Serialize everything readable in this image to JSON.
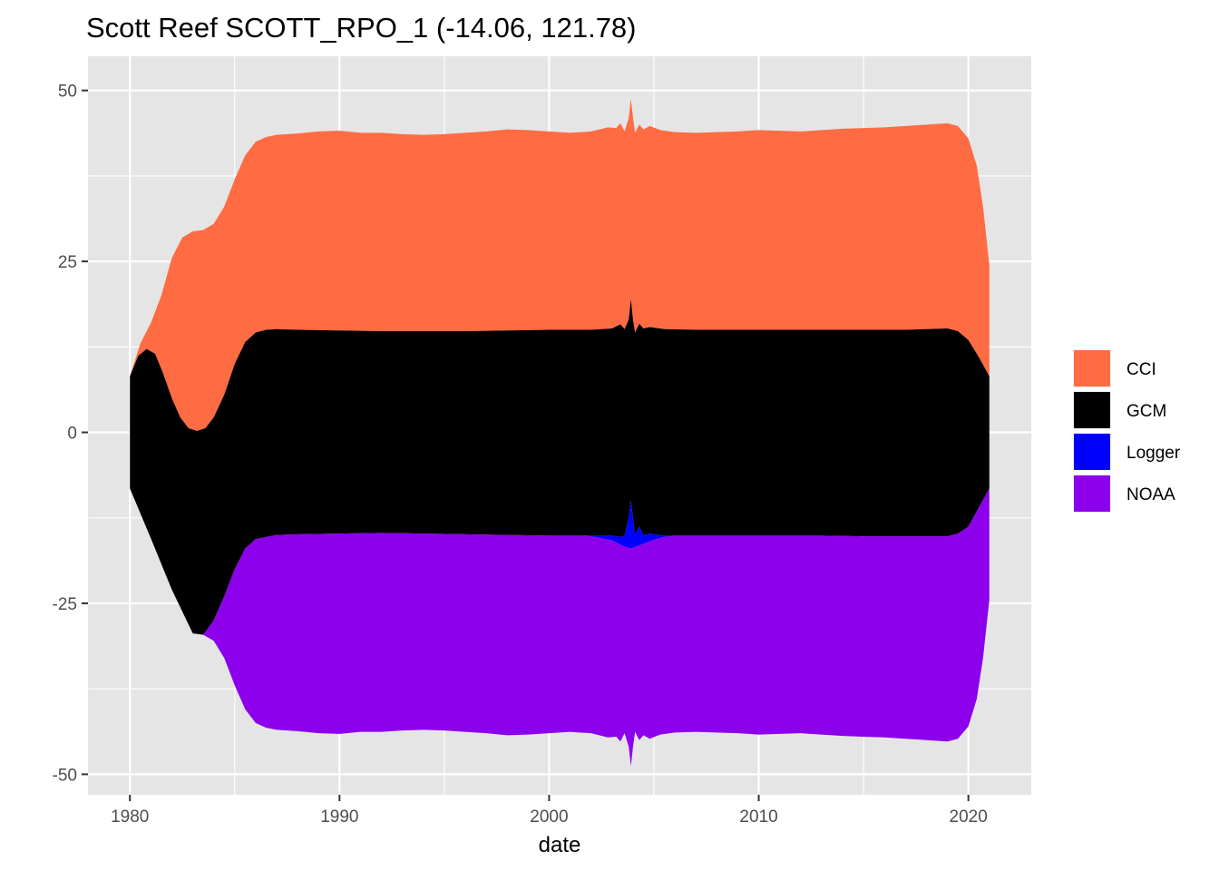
{
  "chart_data": {
    "type": "area",
    "subtype": "streamgraph (stacked, centered)",
    "title": "Scott Reef SCOTT_RPO_1 (-14.06, 121.78)",
    "xlabel": "date",
    "ylabel": "",
    "xlim": [
      1978,
      2023
    ],
    "ylim": [
      -53,
      55
    ],
    "x_ticks": [
      1980,
      1990,
      2000,
      2010,
      2020
    ],
    "x_tick_labels": [
      "1980",
      "1990",
      "2000",
      "2010",
      "2020"
    ],
    "y_ticks": [
      -50,
      -25,
      0,
      25,
      50
    ],
    "y_tick_labels": [
      "-50",
      "-25",
      "0",
      "25",
      "50"
    ],
    "grid": true,
    "legend_position": "right",
    "legend": [
      {
        "key": "CCI",
        "label": "CCI",
        "color": "#ff6b43"
      },
      {
        "key": "GCM",
        "label": "GCM",
        "color": "#000000"
      },
      {
        "key": "Logger",
        "label": "Logger",
        "color": "#0000ff"
      },
      {
        "key": "NOAA",
        "label": "NOAA",
        "color": "#8c00ec"
      }
    ],
    "boundaries": {
      "cci_top": [
        [
          1980.0,
          8.2
        ],
        [
          1980.5,
          13
        ],
        [
          1981.0,
          16
        ],
        [
          1981.5,
          20
        ],
        [
          1982.0,
          25.5
        ],
        [
          1982.5,
          28.5
        ],
        [
          1983.0,
          29.4
        ],
        [
          1983.5,
          29.6
        ],
        [
          1984.0,
          30.5
        ],
        [
          1984.5,
          33
        ],
        [
          1985.0,
          37
        ],
        [
          1985.5,
          40.5
        ],
        [
          1986.0,
          42.5
        ],
        [
          1986.5,
          43.2
        ],
        [
          1987.0,
          43.5
        ],
        [
          1988.0,
          43.7
        ],
        [
          1989.0,
          44
        ],
        [
          1990.0,
          44.1
        ],
        [
          1991.0,
          43.8
        ],
        [
          1992.0,
          43.8
        ],
        [
          1993.0,
          43.6
        ],
        [
          1994.0,
          43.5
        ],
        [
          1995.0,
          43.6
        ],
        [
          1996.0,
          43.8
        ],
        [
          1997.0,
          44
        ],
        [
          1998.0,
          44.3
        ],
        [
          1999.0,
          44.2
        ],
        [
          2000.0,
          44
        ],
        [
          2001.0,
          43.8
        ],
        [
          2002.0,
          44
        ],
        [
          2002.8,
          44.6
        ],
        [
          2003.2,
          44.5
        ],
        [
          2003.4,
          45.2
        ],
        [
          2003.6,
          44
        ],
        [
          2003.8,
          46
        ],
        [
          2003.9,
          48.8
        ],
        [
          2004.0,
          46
        ],
        [
          2004.1,
          43.8
        ],
        [
          2004.3,
          45
        ],
        [
          2004.5,
          44.3
        ],
        [
          2004.8,
          44.8
        ],
        [
          2005.3,
          44.2
        ],
        [
          2006.0,
          43.9
        ],
        [
          2007.0,
          43.8
        ],
        [
          2008.0,
          43.9
        ],
        [
          2009.0,
          44
        ],
        [
          2010.0,
          44.2
        ],
        [
          2011.0,
          44.1
        ],
        [
          2012.0,
          44
        ],
        [
          2013.0,
          44.2
        ],
        [
          2014.0,
          44.4
        ],
        [
          2015.0,
          44.5
        ],
        [
          2016.0,
          44.6
        ],
        [
          2017.0,
          44.8
        ],
        [
          2018.0,
          45
        ],
        [
          2019.0,
          45.2
        ],
        [
          2019.5,
          44.8
        ],
        [
          2020.0,
          43
        ],
        [
          2020.4,
          39
        ],
        [
          2020.7,
          33
        ],
        [
          2021.0,
          24.5
        ]
      ],
      "gcm_top": [
        [
          1980.0,
          8.2
        ],
        [
          1980.4,
          11.2
        ],
        [
          1980.8,
          12.2
        ],
        [
          1981.2,
          11.5
        ],
        [
          1981.6,
          8.5
        ],
        [
          1982.0,
          5
        ],
        [
          1982.4,
          2.2
        ],
        [
          1982.8,
          0.6
        ],
        [
          1983.2,
          0.2
        ],
        [
          1983.6,
          0.6
        ],
        [
          1984.0,
          2.2
        ],
        [
          1984.5,
          5.5
        ],
        [
          1985.0,
          10
        ],
        [
          1985.5,
          13.2
        ],
        [
          1986.0,
          14.6
        ],
        [
          1986.5,
          15
        ],
        [
          1987.0,
          15.1
        ],
        [
          1988.0,
          15
        ],
        [
          1990.0,
          14.9
        ],
        [
          1992.0,
          14.8
        ],
        [
          1994.0,
          14.8
        ],
        [
          1996.0,
          14.8
        ],
        [
          1998.0,
          14.9
        ],
        [
          2000.0,
          15
        ],
        [
          2002.0,
          15
        ],
        [
          2003.0,
          15.2
        ],
        [
          2003.4,
          15.8
        ],
        [
          2003.6,
          15.1
        ],
        [
          2003.8,
          16.5
        ],
        [
          2003.9,
          19.5
        ],
        [
          2004.0,
          16.5
        ],
        [
          2004.1,
          14.6
        ],
        [
          2004.3,
          15.9
        ],
        [
          2004.5,
          15.2
        ],
        [
          2004.8,
          15.4
        ],
        [
          2005.5,
          15.1
        ],
        [
          2007.0,
          15
        ],
        [
          2010.0,
          15
        ],
        [
          2013.0,
          15
        ],
        [
          2015.0,
          15
        ],
        [
          2017.0,
          15
        ],
        [
          2018.0,
          15.1
        ],
        [
          2019.0,
          15.2
        ],
        [
          2019.5,
          14.8
        ],
        [
          2020.0,
          13.5
        ],
        [
          2020.5,
          11
        ],
        [
          2021.0,
          8.2
        ]
      ],
      "logger_top": [
        [
          1980.0,
          -8.2
        ],
        [
          1981.0,
          -15.5
        ],
        [
          1982.0,
          -23
        ],
        [
          1983.0,
          -29.4
        ],
        [
          1983.5,
          -29.6
        ],
        [
          1984.0,
          -27.5
        ],
        [
          1984.5,
          -24
        ],
        [
          1985.0,
          -20
        ],
        [
          1985.5,
          -17
        ],
        [
          1986.0,
          -15.6
        ],
        [
          1987.0,
          -15
        ],
        [
          1988.0,
          -14.9
        ],
        [
          1990.0,
          -14.8
        ],
        [
          1992.0,
          -14.7
        ],
        [
          1994.0,
          -14.8
        ],
        [
          1996.0,
          -14.9
        ],
        [
          1998.0,
          -15
        ],
        [
          2000.0,
          -15.1
        ],
        [
          2002.0,
          -15.1
        ],
        [
          2003.0,
          -15.1
        ],
        [
          2003.4,
          -15.3
        ],
        [
          2003.6,
          -15.1
        ],
        [
          2003.8,
          -12.5
        ],
        [
          2003.9,
          -10
        ],
        [
          2004.0,
          -12.5
        ],
        [
          2004.1,
          -15
        ],
        [
          2004.3,
          -13.8
        ],
        [
          2004.5,
          -15
        ],
        [
          2004.8,
          -14.8
        ],
        [
          2005.5,
          -15.1
        ],
        [
          2007.0,
          -15.1
        ],
        [
          2010.0,
          -15.1
        ],
        [
          2013.0,
          -15.1
        ],
        [
          2015.0,
          -15.2
        ],
        [
          2017.0,
          -15.2
        ],
        [
          2018.0,
          -15.2
        ],
        [
          2019.0,
          -15.2
        ],
        [
          2019.5,
          -14.8
        ],
        [
          2020.0,
          -13.8
        ],
        [
          2020.5,
          -11
        ],
        [
          2021.0,
          -8.2
        ]
      ],
      "noaa_top": [
        [
          1980.0,
          -8.2
        ],
        [
          1981.0,
          -15.5
        ],
        [
          1982.0,
          -23
        ],
        [
          1983.0,
          -29.4
        ],
        [
          1983.5,
          -29.6
        ],
        [
          1984.0,
          -27.5
        ],
        [
          1984.5,
          -24
        ],
        [
          1985.0,
          -20
        ],
        [
          1985.5,
          -17
        ],
        [
          1986.0,
          -15.6
        ],
        [
          1987.0,
          -15
        ],
        [
          1988.0,
          -14.9
        ],
        [
          1990.0,
          -14.8
        ],
        [
          1992.0,
          -14.7
        ],
        [
          1994.0,
          -14.8
        ],
        [
          1996.0,
          -14.9
        ],
        [
          1998.0,
          -15
        ],
        [
          2000.0,
          -15.1
        ],
        [
          2001.5,
          -15.1
        ],
        [
          2002.0,
          -15.2
        ],
        [
          2003.0,
          -15.8
        ],
        [
          2003.5,
          -16.6
        ],
        [
          2003.9,
          -17
        ],
        [
          2004.5,
          -16.3
        ],
        [
          2005.0,
          -15.7
        ],
        [
          2005.5,
          -15.3
        ],
        [
          2006.0,
          -15.1
        ],
        [
          2007.0,
          -15.1
        ],
        [
          2010.0,
          -15.1
        ],
        [
          2013.0,
          -15.1
        ],
        [
          2015.0,
          -15.2
        ],
        [
          2017.0,
          -15.2
        ],
        [
          2018.0,
          -15.2
        ],
        [
          2019.0,
          -15.2
        ],
        [
          2019.5,
          -14.8
        ],
        [
          2020.0,
          -13.8
        ],
        [
          2020.5,
          -11
        ],
        [
          2021.0,
          -8.2
        ]
      ],
      "noaa_bottom": [
        [
          1980.0,
          -8.2
        ],
        [
          1981.0,
          -15.5
        ],
        [
          1982.0,
          -23
        ],
        [
          1983.0,
          -29.4
        ],
        [
          1983.5,
          -29.6
        ],
        [
          1984.0,
          -30.5
        ],
        [
          1984.5,
          -33
        ],
        [
          1985.0,
          -37
        ],
        [
          1985.5,
          -40.5
        ],
        [
          1986.0,
          -42.5
        ],
        [
          1986.5,
          -43.2
        ],
        [
          1987.0,
          -43.5
        ],
        [
          1988.0,
          -43.7
        ],
        [
          1989.0,
          -44
        ],
        [
          1990.0,
          -44.1
        ],
        [
          1991.0,
          -43.8
        ],
        [
          1992.0,
          -43.8
        ],
        [
          1993.0,
          -43.6
        ],
        [
          1994.0,
          -43.5
        ],
        [
          1995.0,
          -43.6
        ],
        [
          1996.0,
          -43.8
        ],
        [
          1997.0,
          -44
        ],
        [
          1998.0,
          -44.3
        ],
        [
          1999.0,
          -44.2
        ],
        [
          2000.0,
          -44
        ],
        [
          2001.0,
          -43.8
        ],
        [
          2002.0,
          -44
        ],
        [
          2002.8,
          -44.6
        ],
        [
          2003.2,
          -44.5
        ],
        [
          2003.4,
          -45.2
        ],
        [
          2003.6,
          -44
        ],
        [
          2003.8,
          -46
        ],
        [
          2003.9,
          -48.8
        ],
        [
          2004.0,
          -46
        ],
        [
          2004.1,
          -43.8
        ],
        [
          2004.3,
          -45
        ],
        [
          2004.5,
          -44.3
        ],
        [
          2004.8,
          -44.8
        ],
        [
          2005.3,
          -44.2
        ],
        [
          2006.0,
          -43.9
        ],
        [
          2007.0,
          -43.8
        ],
        [
          2008.0,
          -43.9
        ],
        [
          2009.0,
          -44
        ],
        [
          2010.0,
          -44.2
        ],
        [
          2011.0,
          -44.1
        ],
        [
          2012.0,
          -44
        ],
        [
          2013.0,
          -44.2
        ],
        [
          2014.0,
          -44.4
        ],
        [
          2015.0,
          -44.5
        ],
        [
          2016.0,
          -44.6
        ],
        [
          2017.0,
          -44.8
        ],
        [
          2018.0,
          -45
        ],
        [
          2019.0,
          -45.2
        ],
        [
          2019.5,
          -44.8
        ],
        [
          2020.0,
          -43
        ],
        [
          2020.4,
          -39
        ],
        [
          2020.7,
          -33
        ],
        [
          2021.0,
          -24.5
        ]
      ]
    },
    "series": [
      {
        "name": "CCI",
        "color": "#ff6b43",
        "upper": "cci_top",
        "lower": "gcm_top"
      },
      {
        "name": "GCM",
        "color": "#000000",
        "upper": "gcm_top",
        "lower": "logger_top"
      },
      {
        "name": "Logger",
        "color": "#0000ff",
        "upper": "logger_top",
        "lower": "noaa_top"
      },
      {
        "name": "NOAA",
        "color": "#8c00ec",
        "upper": "noaa_top",
        "lower": "noaa_bottom"
      }
    ],
    "panel_background": "#e5e5e5",
    "grid_color": "#ffffff"
  }
}
